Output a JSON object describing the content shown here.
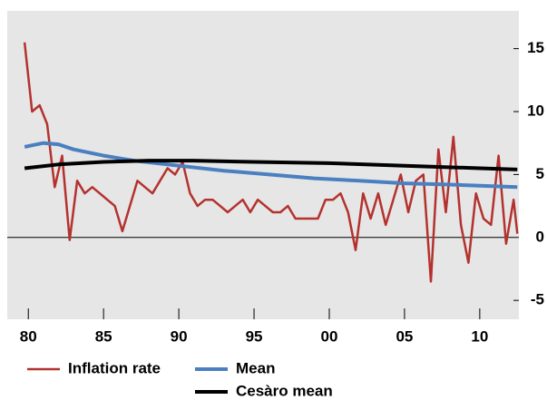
{
  "chart_data": {
    "type": "line",
    "xlim": [
      1978.6,
      2012.6
    ],
    "ylim": [
      -6.5,
      18
    ],
    "xticks": [
      {
        "value": 1980,
        "label": "80"
      },
      {
        "value": 1985,
        "label": "85"
      },
      {
        "value": 1990,
        "label": "90"
      },
      {
        "value": 1995,
        "label": "95"
      },
      {
        "value": 2000,
        "label": "00"
      },
      {
        "value": 2005,
        "label": "05"
      },
      {
        "value": 2010,
        "label": "10"
      }
    ],
    "yticks": [
      -5,
      0,
      5,
      10,
      15
    ],
    "series": [
      {
        "name": "Inflation rate",
        "color": "#b3322e",
        "x": [
          1979.75,
          1980.25,
          1980.75,
          1981.25,
          1981.75,
          1982.25,
          1982.75,
          1983.25,
          1983.75,
          1984.25,
          1984.75,
          1985.25,
          1985.75,
          1986.25,
          1986.75,
          1987.25,
          1987.75,
          1988.25,
          1988.75,
          1989.25,
          1989.75,
          1990.25,
          1990.75,
          1991.25,
          1991.75,
          1992.25,
          1992.75,
          1993.25,
          1993.75,
          1994.25,
          1994.75,
          1995.25,
          1995.75,
          1996.25,
          1996.75,
          1997.25,
          1997.75,
          1998.25,
          1998.75,
          1999.25,
          1999.75,
          2000.25,
          2000.75,
          2001.25,
          2001.75,
          2002.25,
          2002.75,
          2003.25,
          2003.75,
          2004.25,
          2004.75,
          2005.25,
          2005.75,
          2006.25,
          2006.75,
          2007.25,
          2007.75,
          2008.25,
          2008.75,
          2009.25,
          2009.75,
          2010.25,
          2010.75,
          2011.25,
          2011.75,
          2012.25,
          2012.5
        ],
        "values": [
          15.5,
          10,
          10.5,
          9,
          4,
          6.5,
          -0.2,
          4.5,
          3.5,
          4,
          3.5,
          3,
          2.5,
          0.5,
          2.5,
          4.5,
          4,
          3.5,
          4.5,
          5.5,
          5,
          6,
          3.5,
          2.5,
          3,
          3,
          2.5,
          2,
          2.5,
          3,
          2,
          3,
          2.5,
          2,
          2,
          2.5,
          1.5,
          1.5,
          1.5,
          1.5,
          3,
          3,
          3.5,
          2,
          -1,
          3.5,
          1.5,
          3.5,
          1,
          3,
          5,
          2,
          4.5,
          5,
          -3.5,
          7,
          2,
          8,
          1,
          -2,
          3.5,
          1.5,
          1,
          6.5,
          -0.5,
          3,
          0.3
        ]
      },
      {
        "name": "Mean",
        "color": "#4a7fc0",
        "x": [
          1979.75,
          1981,
          1982,
          1983,
          1985,
          1987,
          1990,
          1993,
          1996,
          1999,
          2002,
          2005,
          2008,
          2012.5
        ],
        "values": [
          7.2,
          7.5,
          7.4,
          7,
          6.5,
          6.1,
          5.7,
          5.3,
          5,
          4.7,
          4.5,
          4.3,
          4.2,
          4
        ]
      },
      {
        "name": "Cesàro mean",
        "color": "#000000",
        "x": [
          1979.75,
          1982,
          1985,
          1988,
          1991,
          1995,
          2000,
          2005,
          2010,
          2012.5
        ],
        "values": [
          5.5,
          5.8,
          6,
          6.1,
          6.1,
          6,
          5.9,
          5.7,
          5.5,
          5.4
        ]
      }
    ]
  }
}
